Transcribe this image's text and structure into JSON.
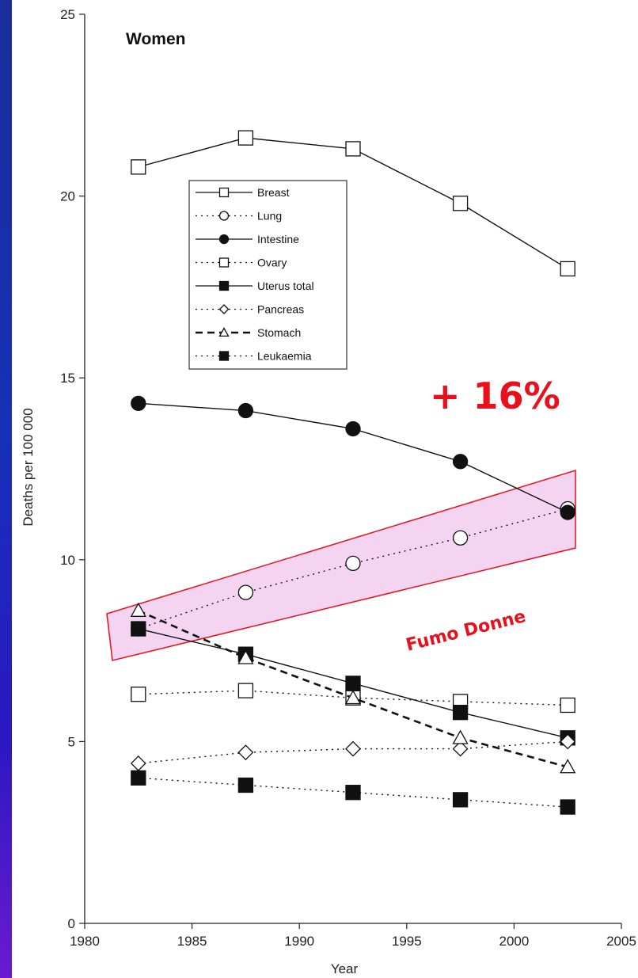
{
  "chart_data": {
    "type": "line",
    "title": "Women",
    "xlabel": "Year",
    "ylabel": "Deaths per 100 000",
    "xlim": [
      1980,
      2005
    ],
    "ylim": [
      0,
      25
    ],
    "x_ticks": [
      "1980",
      "1985",
      "1990",
      "1995",
      "2000",
      "2005"
    ],
    "y_ticks": [
      "0",
      "5",
      "10",
      "15",
      "20",
      "25"
    ],
    "x": [
      1982.5,
      1987.5,
      1992.5,
      1997.5,
      2002.5
    ],
    "legend_position": "upper-left",
    "series": [
      {
        "name": "Breast",
        "values": [
          20.8,
          21.6,
          21.3,
          19.8,
          18.0
        ],
        "line": "solid",
        "marker": "square-open"
      },
      {
        "name": "Lung",
        "values": [
          8.1,
          9.1,
          9.9,
          10.6,
          11.4
        ],
        "line": "dotted",
        "marker": "circle-open"
      },
      {
        "name": "Intestine",
        "values": [
          14.3,
          14.1,
          13.6,
          12.7,
          11.3
        ],
        "line": "solid",
        "marker": "circle-filled"
      },
      {
        "name": "Ovary",
        "values": [
          6.3,
          6.4,
          6.2,
          6.1,
          6.0
        ],
        "line": "dotted",
        "marker": "square-open"
      },
      {
        "name": "Uterus total",
        "values": [
          8.1,
          7.4,
          6.6,
          5.8,
          5.1
        ],
        "line": "solid",
        "marker": "square-filled"
      },
      {
        "name": "Pancreas",
        "values": [
          4.4,
          4.7,
          4.8,
          4.8,
          5.0
        ],
        "line": "dotted",
        "marker": "diamond-open"
      },
      {
        "name": "Stomach",
        "values": [
          8.6,
          7.3,
          6.2,
          5.1,
          4.3
        ],
        "line": "dashed",
        "marker": "triangle-open"
      },
      {
        "name": "Leukaemia",
        "values": [
          4.0,
          3.8,
          3.6,
          3.4,
          3.2
        ],
        "line": "dotted",
        "marker": "square-filled"
      }
    ],
    "annotations": {
      "increase": "+ 16%",
      "band_label": "Fumo Donne",
      "color": "#e8101c",
      "band_fill": "#f2c6ee"
    }
  }
}
